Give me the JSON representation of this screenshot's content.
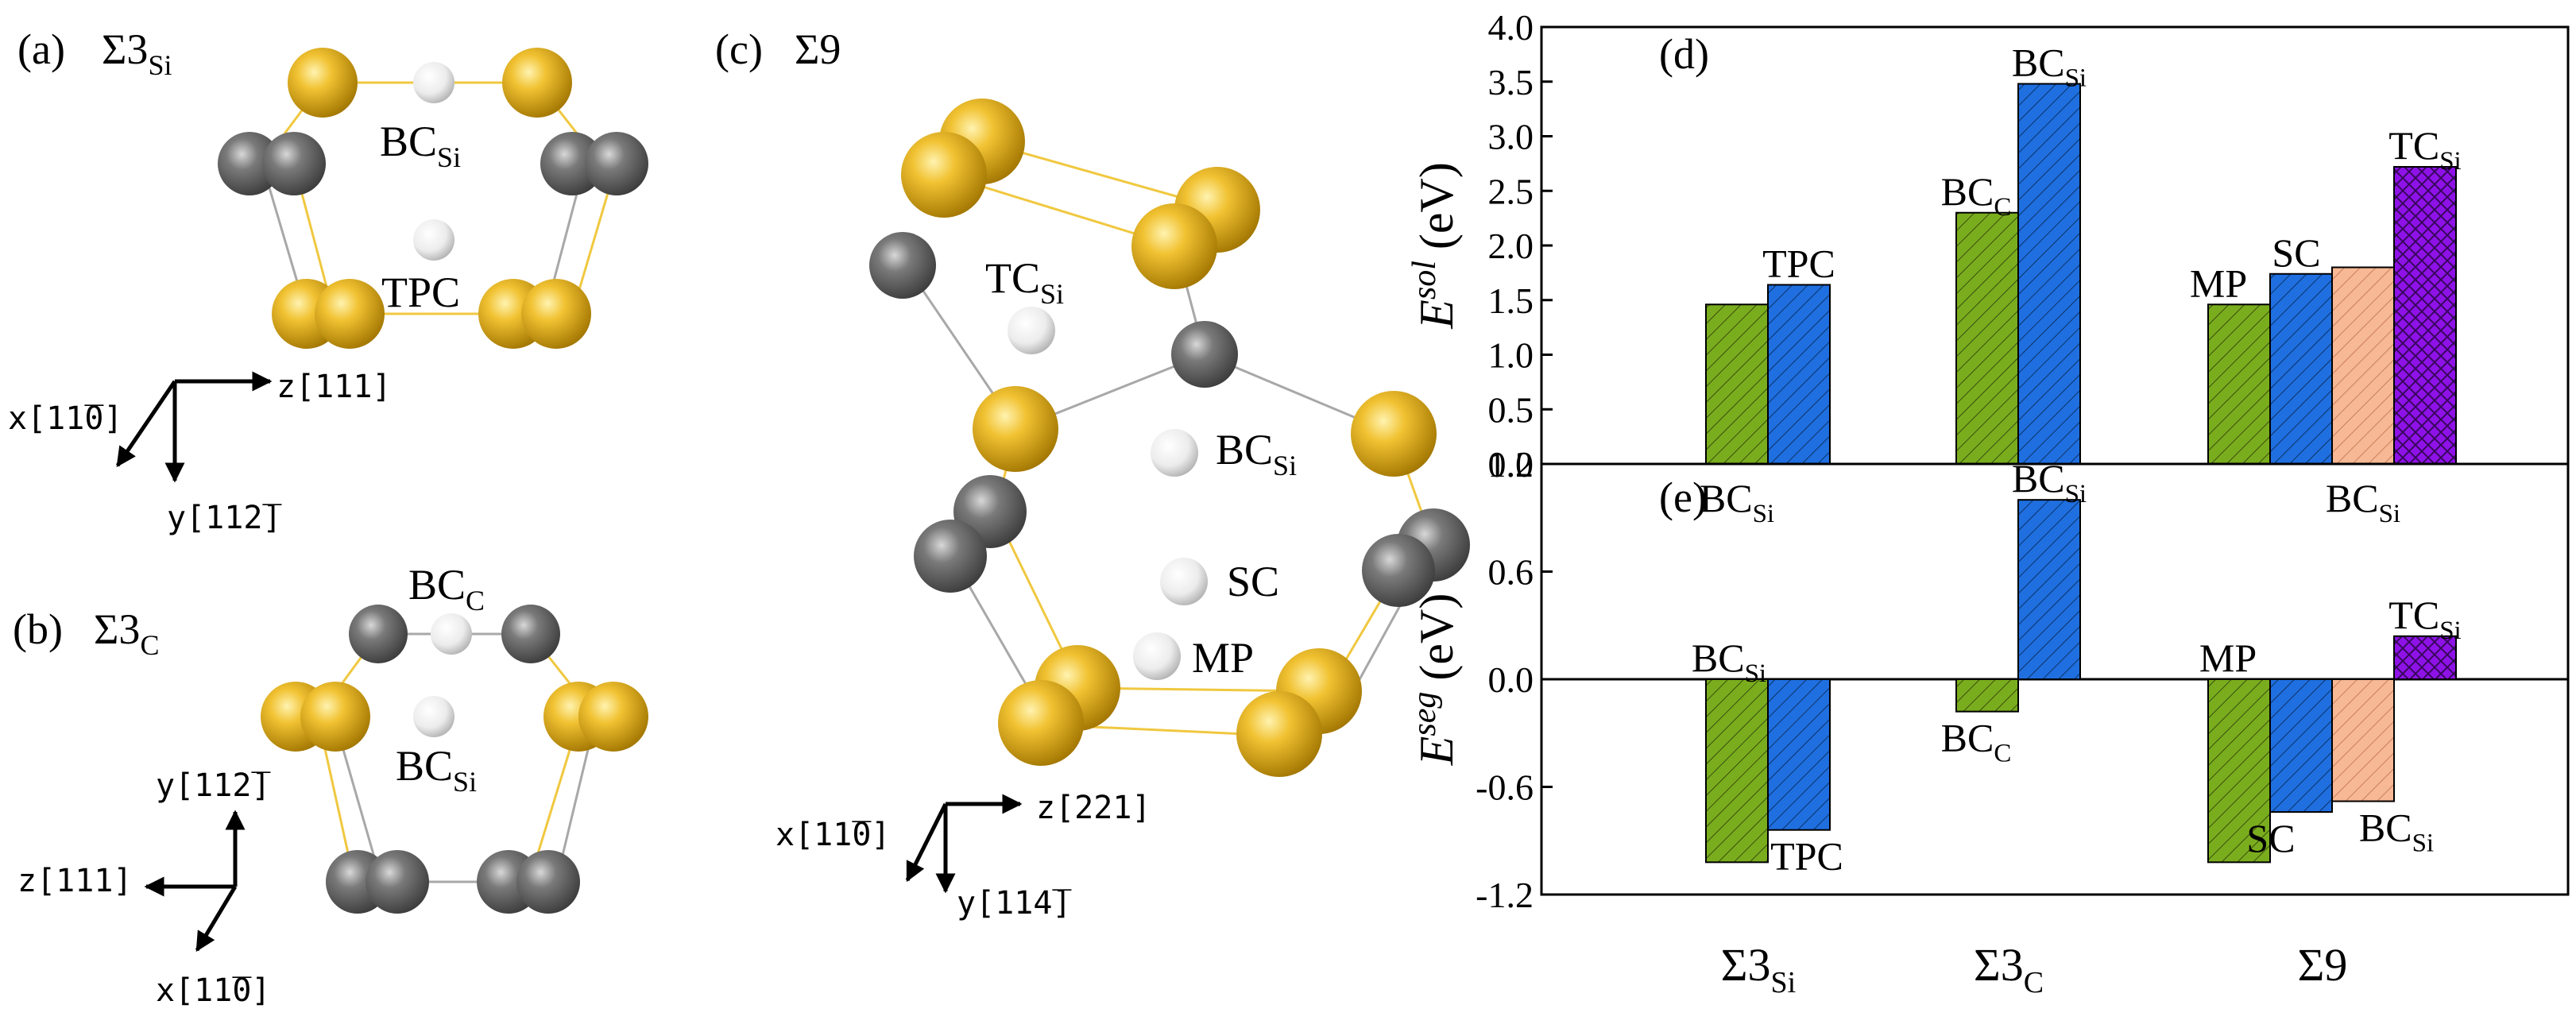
{
  "panels": {
    "a": {
      "letter": "(a)",
      "sigma": "Σ3",
      "sub": "Si",
      "sites": [
        {
          "main": "BC",
          "sub": "Si"
        },
        {
          "main": "TPC",
          "sub": ""
        }
      ],
      "axes": {
        "x": "x[11̅0]",
        "y": "y[112̅]",
        "z": "z[111]"
      }
    },
    "b": {
      "letter": "(b)",
      "sigma": "Σ3",
      "sub": "C",
      "sites": [
        {
          "main": "BC",
          "sub": "C"
        },
        {
          "main": "BC",
          "sub": "Si"
        }
      ],
      "axes": {
        "x": "x[11̅0]",
        "y": "y[112̅]",
        "z": "z[111]"
      }
    },
    "c": {
      "letter": "(c)",
      "sigma": "Σ9",
      "sites": [
        {
          "main": "TC",
          "sub": "Si"
        },
        {
          "main": "BC",
          "sub": "Si"
        },
        {
          "main": "SC",
          "sub": ""
        },
        {
          "main": "MP",
          "sub": ""
        }
      ],
      "axes": {
        "x": "x[11̅0]",
        "y": "y[114̅]",
        "z": "z[221]"
      }
    },
    "d": {
      "letter": "(d)"
    },
    "e": {
      "letter": "(e)"
    }
  },
  "colors": {
    "si_atom": "#e8b420",
    "c_atom": "#6e6e6e",
    "site_atom": "#f2f2f2",
    "bond_si": "#f0c840",
    "bond_c": "#a8a8a8",
    "green": "#7aad1e",
    "blue": "#1f6fe0",
    "peach": "#f6b895",
    "purple": "#8e12e8"
  },
  "chart_data": [
    {
      "type": "bar",
      "panel": "(d)",
      "ylabel": {
        "main": "E",
        "sup": "sol",
        "unit": "(eV)"
      },
      "ylim": [
        0,
        4.0
      ],
      "yticks": [
        "0.0",
        "0.5",
        "1.0",
        "1.5",
        "2.0",
        "2.5",
        "3.0",
        "3.5",
        "4.0"
      ],
      "groups": [
        "Σ3Si",
        "Σ3C",
        "Σ9"
      ],
      "bars": [
        {
          "group": "Σ3Si",
          "value": 1.46,
          "color": "green",
          "label": {
            "main": "BC",
            "sub": "Si"
          }
        },
        {
          "group": "Σ3Si",
          "value": 1.64,
          "color": "blue",
          "label": {
            "main": "TPC",
            "sub": ""
          }
        },
        {
          "group": "Σ3C",
          "value": 2.3,
          "color": "green",
          "label": {
            "main": "BC",
            "sub": "C"
          }
        },
        {
          "group": "Σ3C",
          "value": 3.48,
          "color": "blue",
          "label": {
            "main": "BC",
            "sub": "Si"
          }
        },
        {
          "group": "Σ9",
          "value": 1.46,
          "color": "green",
          "label": {
            "main": "MP",
            "sub": ""
          }
        },
        {
          "group": "Σ9",
          "value": 1.74,
          "color": "blue",
          "label": {
            "main": "SC",
            "sub": ""
          }
        },
        {
          "group": "Σ9",
          "value": 1.8,
          "color": "peach",
          "label": {
            "main": "BC",
            "sub": "Si"
          }
        },
        {
          "group": "Σ9",
          "value": 2.72,
          "color": "purple",
          "label": {
            "main": "TC",
            "sub": "Si"
          }
        }
      ]
    },
    {
      "type": "bar",
      "panel": "(e)",
      "ylabel": {
        "main": "E",
        "sup": "seg",
        "unit": "(eV)"
      },
      "ylim": [
        -1.2,
        1.2
      ],
      "yticks": [
        "-1.2",
        "-0.6",
        "0.0",
        "0.6",
        "1.2"
      ],
      "groups": [
        "Σ3Si",
        "Σ3C",
        "Σ9"
      ],
      "bars": [
        {
          "group": "Σ3Si",
          "value": -1.02,
          "color": "green",
          "label": {
            "main": "BC",
            "sub": "Si"
          }
        },
        {
          "group": "Σ3Si",
          "value": -0.84,
          "color": "blue",
          "label": {
            "main": "TPC",
            "sub": ""
          }
        },
        {
          "group": "Σ3C",
          "value": -0.18,
          "color": "green",
          "label": {
            "main": "BC",
            "sub": "C"
          }
        },
        {
          "group": "Σ3C",
          "value": 1.0,
          "color": "blue",
          "label": {
            "main": "BC",
            "sub": "Si"
          }
        },
        {
          "group": "Σ9",
          "value": -1.02,
          "color": "green",
          "label": {
            "main": "MP",
            "sub": ""
          }
        },
        {
          "group": "Σ9",
          "value": -0.74,
          "color": "blue",
          "label": {
            "main": "SC",
            "sub": ""
          }
        },
        {
          "group": "Σ9",
          "value": -0.68,
          "color": "peach",
          "label": {
            "main": "BC",
            "sub": "Si"
          }
        },
        {
          "group": "Σ9",
          "value": 0.24,
          "color": "purple",
          "label": {
            "main": "TC",
            "sub": "Si"
          }
        }
      ]
    }
  ],
  "x_groups": [
    {
      "main": "Σ3",
      "sub": "Si"
    },
    {
      "main": "Σ3",
      "sub": "C"
    },
    {
      "main": "Σ9",
      "sub": ""
    }
  ]
}
